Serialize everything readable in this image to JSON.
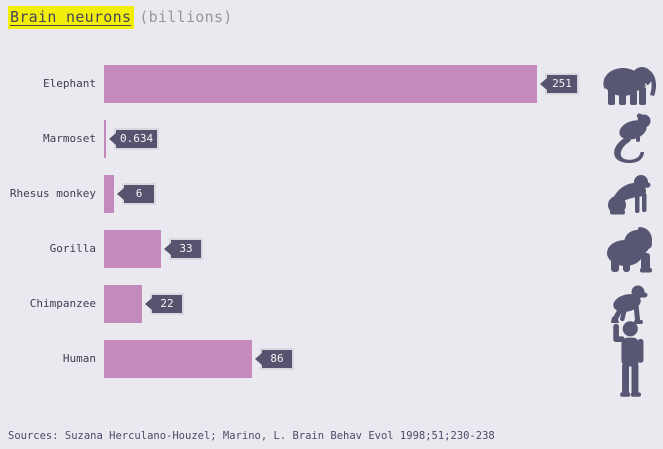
{
  "title": {
    "text": "Brain neurons",
    "unit": "(billions)"
  },
  "source": "Sources: Suzana Herculano-Houzel; Marino, L. Brain Behav Evol 1998;51;230-238",
  "colors": {
    "background": "#eae9ef",
    "bar": "#c48abc",
    "badge": "#56536e",
    "badge_border": "#d9d8e1",
    "badge_text": "#f4f3f6",
    "icon": "#575673",
    "label_text": "#403d52",
    "title_text": "#474358",
    "title_highlight": "#f2ee0a",
    "unit_gray": "#98959e",
    "source_text": "#4c4a68"
  },
  "chart_data": {
    "type": "bar",
    "orientation": "horizontal",
    "title": "Brain neurons (billions)",
    "categories": [
      "Elephant",
      "Marmoset",
      "Rhesus monkey",
      "Gorilla",
      "Chimpanzee",
      "Human"
    ],
    "values": [
      251,
      0.634,
      6,
      33,
      22,
      86
    ],
    "value_labels": [
      "251",
      "0.634",
      "6",
      "33",
      "22",
      "86"
    ],
    "unit": "billions of neurons",
    "xlim": [
      0,
      251
    ],
    "grid": false,
    "legend": false,
    "value_label_style": "dark badge with left-pointing arrow at bar end",
    "icons": [
      "elephant-icon",
      "marmoset-icon",
      "rhesus-monkey-icon",
      "gorilla-icon",
      "chimpanzee-icon",
      "human-icon"
    ]
  }
}
